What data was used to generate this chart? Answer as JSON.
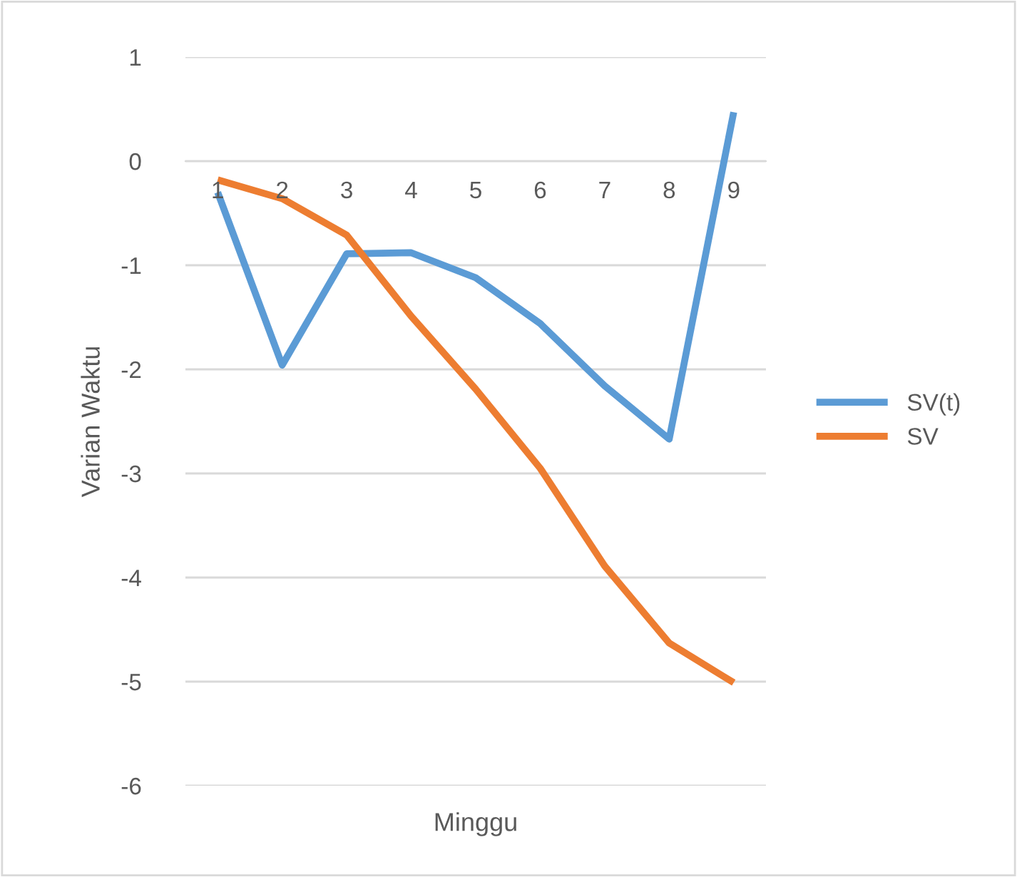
{
  "chart_data": {
    "type": "line",
    "xlabel": "Minggu",
    "ylabel": "Varian Waktu",
    "categories": [
      "1",
      "2",
      "3",
      "4",
      "5",
      "6",
      "7",
      "8",
      "9"
    ],
    "series": [
      {
        "name": "SV(t)",
        "color": "#5b9bd5",
        "values": [
          -0.3,
          -1.96,
          -0.89,
          -0.88,
          -1.12,
          -1.56,
          -2.16,
          -2.67,
          0.47
        ]
      },
      {
        "name": "SV",
        "color": "#ed7d31",
        "values": [
          -0.18,
          -0.36,
          -0.71,
          -1.49,
          -2.19,
          -2.95,
          -3.89,
          -4.63,
          -5.01
        ]
      }
    ],
    "ylim": [
      -6,
      1
    ],
    "yticks": [
      -6,
      -5,
      -4,
      -3,
      -2,
      -1,
      0,
      1
    ],
    "grid": "y",
    "legend": "right",
    "marker": "none",
    "line_style": "solid"
  }
}
